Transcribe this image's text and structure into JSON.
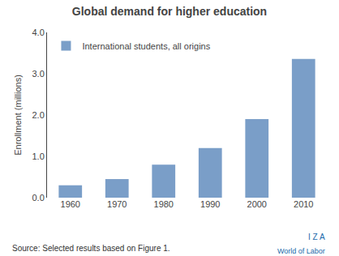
{
  "chart_data": {
    "type": "bar",
    "title": "Global demand for higher education",
    "categories": [
      "1960",
      "1970",
      "1980",
      "1990",
      "2000",
      "2010"
    ],
    "series": [
      {
        "name": "International students, all origins",
        "color": "#7a9ec8",
        "values": [
          0.3,
          0.45,
          0.8,
          1.2,
          1.9,
          3.36
        ]
      }
    ],
    "ylabel": "Enrollment (millions)",
    "ylim": [
      0,
      4.0
    ],
    "yticks": [
      {
        "value": 0.0,
        "label": "0.0"
      },
      {
        "value": 1.0,
        "label": "1.0"
      },
      {
        "value": 2.0,
        "label": "2.0"
      },
      {
        "value": 3.0,
        "label": "3.0"
      },
      {
        "value": 4.0,
        "label": "4.0"
      }
    ],
    "grid": false,
    "legend": "upper left",
    "annotations": [
      "Source: Selected results based on Figure 1.",
      "I Z A",
      "World of Labor"
    ]
  }
}
